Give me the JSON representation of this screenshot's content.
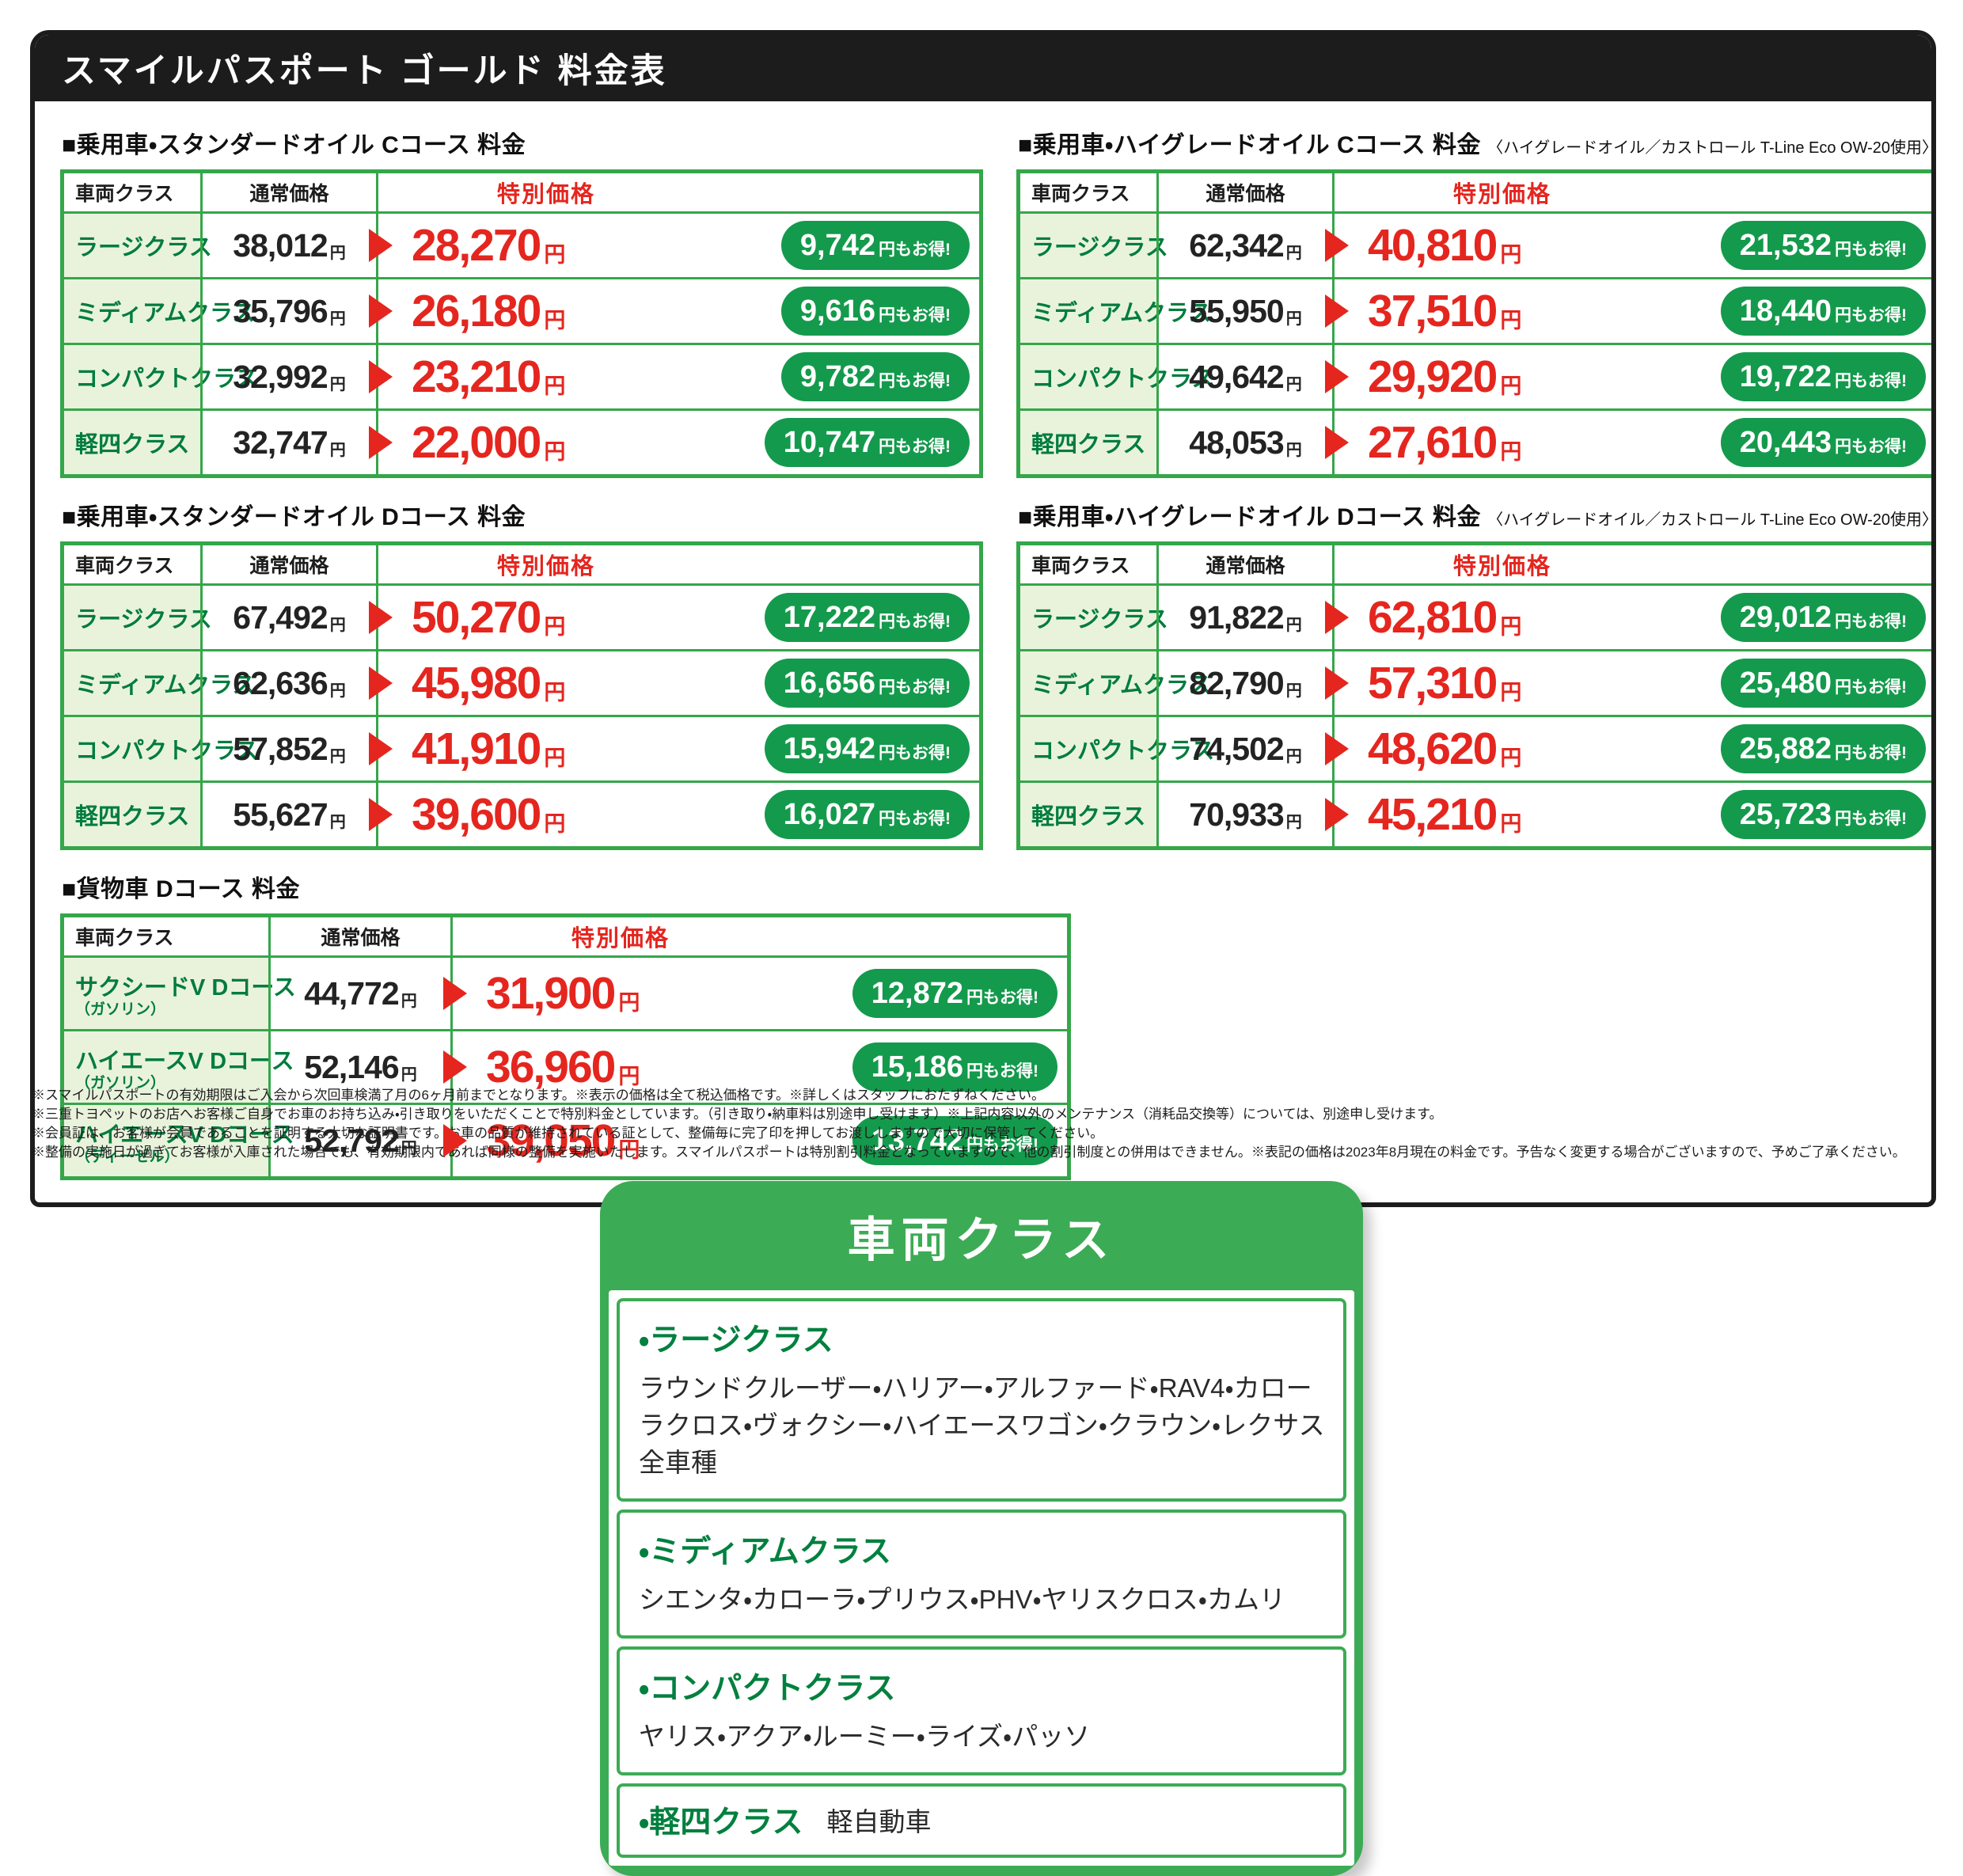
{
  "page_title": "スマイルパスポート ゴールド 料金表",
  "table_headers": {
    "class": "車両クラス",
    "normal": "通常価格",
    "special": "特別価格"
  },
  "units": {
    "yen": "円",
    "save_suffix": "円もお得!"
  },
  "tables": [
    {
      "heading": "■乗用車・スタンダードオイル Cコース 料金",
      "note": "",
      "rows": [
        {
          "cls": "ラージクラス",
          "normal": "38,012",
          "special": "28,270",
          "save": "9,742"
        },
        {
          "cls": "ミディアムクラス",
          "normal": "35,796",
          "special": "26,180",
          "save": "9,616"
        },
        {
          "cls": "コンパクトクラス",
          "normal": "32,992",
          "special": "23,210",
          "save": "9,782"
        },
        {
          "cls": "軽四クラス",
          "normal": "32,747",
          "special": "22,000",
          "save": "10,747"
        }
      ]
    },
    {
      "heading": "■乗用車・スタンダードオイル Dコース 料金",
      "note": "",
      "rows": [
        {
          "cls": "ラージクラス",
          "normal": "67,492",
          "special": "50,270",
          "save": "17,222"
        },
        {
          "cls": "ミディアムクラス",
          "normal": "62,636",
          "special": "45,980",
          "save": "16,656"
        },
        {
          "cls": "コンパクトクラス",
          "normal": "57,852",
          "special": "41,910",
          "save": "15,942"
        },
        {
          "cls": "軽四クラス",
          "normal": "55,627",
          "special": "39,600",
          "save": "16,027"
        }
      ]
    },
    {
      "heading": "■貨物車 Dコース 料金",
      "note": "",
      "rows": [
        {
          "cls": "サクシードV Dコース",
          "sub": "（ガソリン）",
          "normal": "44,772",
          "special": "31,900",
          "save": "12,872"
        },
        {
          "cls": "ハイエースV Dコース",
          "sub": "（ガソリン）",
          "normal": "52,146",
          "special": "36,960",
          "save": "15,186"
        },
        {
          "cls": "ハイエースV Dコース",
          "sub": "（ディーゼル）",
          "normal": "52,792",
          "special": "39,050",
          "save": "13,742"
        }
      ]
    },
    {
      "heading": "■乗用車・ハイグレードオイル Cコース 料金",
      "note": "〈ハイグレードオイル／カストロール T-Line Eco OW-20使用〉",
      "rows": [
        {
          "cls": "ラージクラス",
          "normal": "62,342",
          "special": "40,810",
          "save": "21,532"
        },
        {
          "cls": "ミディアムクラス",
          "normal": "55,950",
          "special": "37,510",
          "save": "18,440"
        },
        {
          "cls": "コンパクトクラス",
          "normal": "49,642",
          "special": "29,920",
          "save": "19,722"
        },
        {
          "cls": "軽四クラス",
          "normal": "48,053",
          "special": "27,610",
          "save": "20,443"
        }
      ]
    },
    {
      "heading": "■乗用車・ハイグレードオイル Dコース 料金",
      "note": "〈ハイグレードオイル／カストロール T-Line Eco OW-20使用〉",
      "rows": [
        {
          "cls": "ラージクラス",
          "normal": "91,822",
          "special": "62,810",
          "save": "29,012"
        },
        {
          "cls": "ミディアムクラス",
          "normal": "82,790",
          "special": "57,310",
          "save": "25,480"
        },
        {
          "cls": "コンパクトクラス",
          "normal": "74,502",
          "special": "48,620",
          "save": "25,882"
        },
        {
          "cls": "軽四クラス",
          "normal": "70,933",
          "special": "45,210",
          "save": "25,723"
        }
      ]
    }
  ],
  "footnotes": [
    "※スマイルパスポートの有効期限はご入会から次回車検満了月の6ヶ月前までとなります。※表示の価格は全て税込価格です。※詳しくはスタッフにおたずねください。",
    "※三重トヨペットのお店へお客様ご自身でお車のお持ち込み・引き取りをいただくことで特別料金としています。（引き取り・納車料は別途申し受けます）※上記内容以外のメンテナンス（消耗品交換等）については、別途申し受けます。",
    "※会員証は、お客様が会員であることを証明する大切な証明書です。お車の品質が維持されている証として、整備毎に完了印を押してお渡ししますので大切に保管してください。",
    "※整備の実施日が過ぎてお客様が入庫された場合でも、有効期限内であれば同様の整備を実施いたします。スマイルパスポートは特別割引料金となっていますので、他の割引制度との併用はできません。※表記の価格は2023年8月現在の料金です。予告なく変更する場合がございますので、予めご了承ください。"
  ],
  "class_box": {
    "title": "車両クラス",
    "items": [
      {
        "name": "・ラージクラス",
        "desc": "ラウンドクルーザー・ハリアー・アルファード・RAV4・カローラクロス・ヴォクシー・ハイエースワゴン・クラウン・レクサス 全車種"
      },
      {
        "name": "・ミディアムクラス",
        "desc": "シエンタ・カローラ・プリウス・PHV・ヤリスクロス・カムリ"
      },
      {
        "name": "・コンパクトクラス",
        "desc": "ヤリス・アクア・ルーミー・ライズ・パッソ"
      },
      {
        "name": "・軽四クラス",
        "desc": "軽自動車"
      }
    ]
  }
}
